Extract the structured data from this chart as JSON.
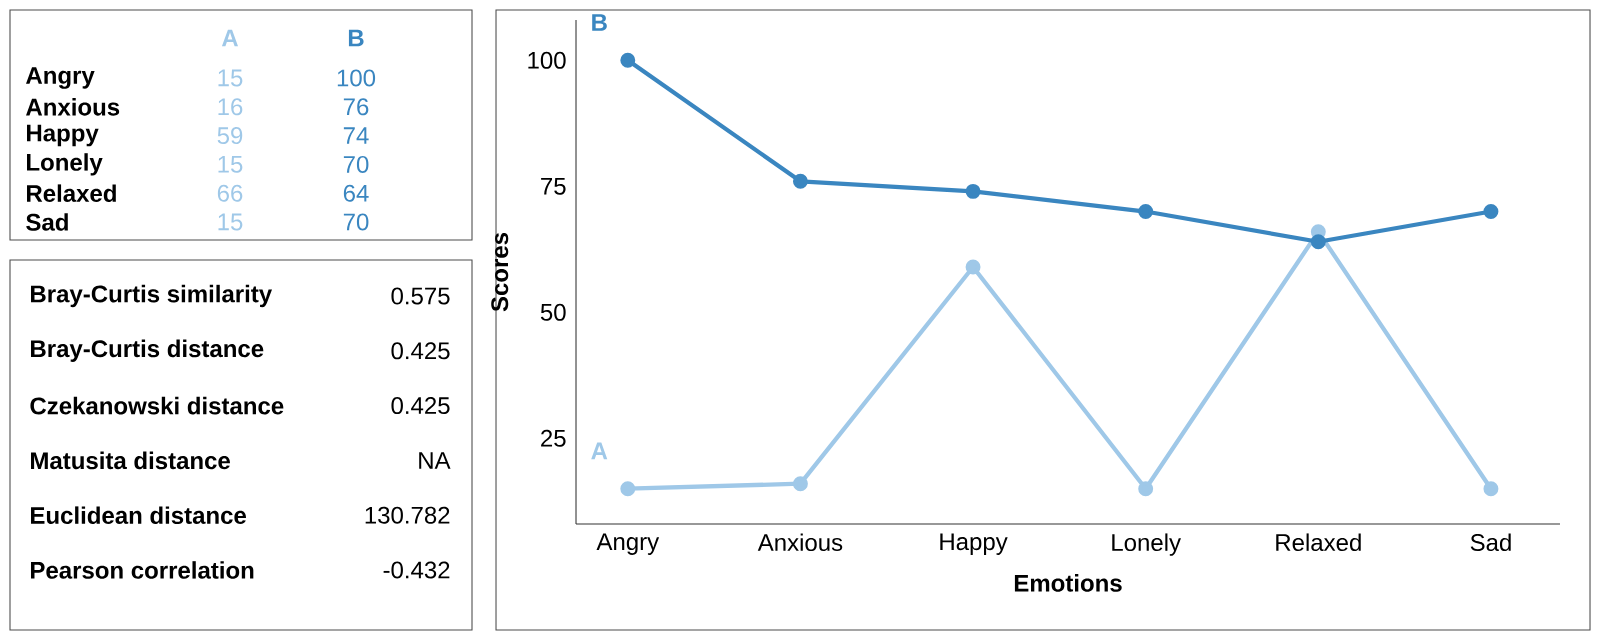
{
  "chart_data": [
    {
      "type": "other",
      "categories": [
        "Angry",
        "Anxious",
        "Happy",
        "Lonely",
        "Relaxed",
        "Sad"
      ],
      "series": [
        {
          "name": "A",
          "color": "#9fc8e8",
          "values": [
            15,
            16,
            59,
            15,
            66,
            15
          ]
        },
        {
          "name": "B",
          "color": "#3a86c0",
          "values": [
            100,
            76,
            74,
            70,
            64,
            70
          ]
        }
      ],
      "data_labels": true
    },
    {
      "type": "line",
      "xlabel": "Emotions",
      "ylabel": "Scores",
      "categories": [
        "Angry",
        "Anxious",
        "Happy",
        "Lonely",
        "Relaxed",
        "Sad"
      ],
      "series": [
        {
          "name": "A",
          "color": "#9fc8e8",
          "values": [
            15,
            16,
            59,
            15,
            66,
            15
          ]
        },
        {
          "name": "B",
          "color": "#3a86c0",
          "values": [
            100,
            76,
            74,
            70,
            64,
            70
          ]
        }
      ],
      "ylim": [
        8,
        108
      ],
      "yticks": [
        25,
        50,
        75,
        100
      ],
      "marker": "circle",
      "line_style": "solid"
    },
    {
      "type": "other",
      "annotations": [
        "Bray-Curtis similarity",
        "0.575",
        "Bray-Curtis distance",
        "0.425",
        "Czekanowski distance",
        "0.425",
        "Matusita distance",
        "NA",
        "Euclidean distance",
        "130.782",
        "Pearson correlation",
        "-0.432"
      ]
    }
  ]
}
